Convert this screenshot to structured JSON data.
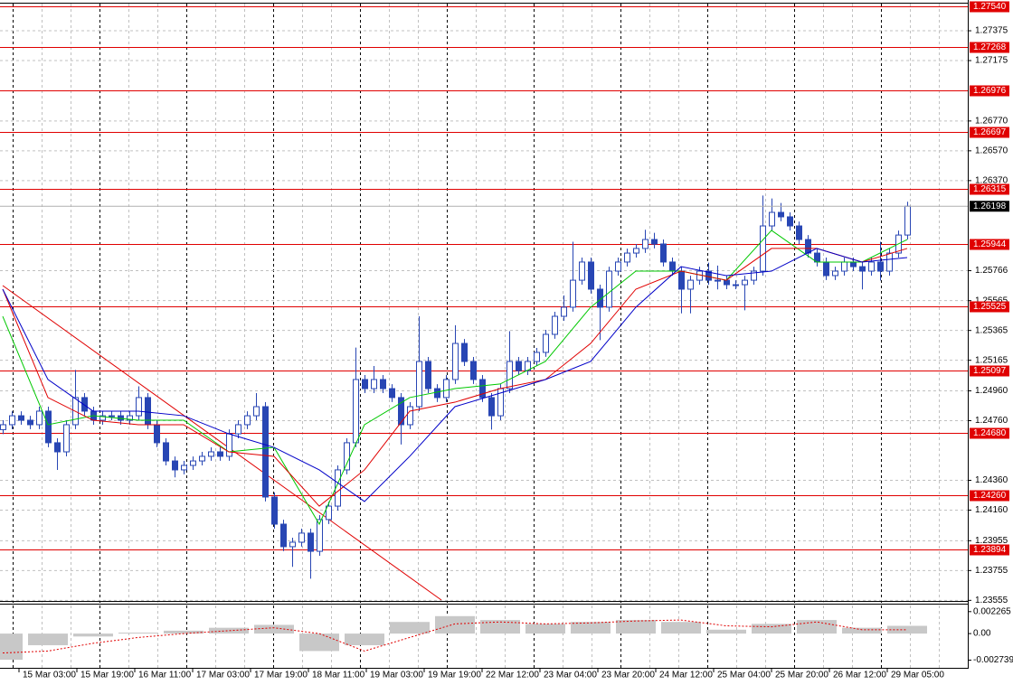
{
  "chart_data": {
    "type": "candlestick",
    "ylim": [
      1.23557,
      1.27551
    ],
    "yticks": [
      1.27375,
      1.27175,
      {
        "value": 1.2677,
        "label": "1.26770"
      },
      {
        "value": 1.2657,
        "label": "1.26570"
      },
      {
        "value": 1.2637,
        "label": "1.26370"
      },
      1.25766,
      1.25565,
      1.25365,
      1.25165,
      {
        "value": 1.2496,
        "label": "1.24960"
      },
      {
        "value": 1.2476,
        "label": "1.24760"
      },
      {
        "value": 1.2436,
        "label": "1.24360"
      },
      {
        "value": 1.2416,
        "label": "1.24160"
      },
      1.23955,
      1.23755,
      1.23555
    ],
    "grid": true,
    "categories": [
      "1:00",
      "15 Mar 03:00",
      "15 Mar 19:00",
      "16 Mar 11:00",
      "17 Mar 03:00",
      "17 Mar 19:00",
      "18 Mar 11:00",
      "19 Mar 03:00",
      "19 Mar 19:00",
      "22 Mar 12:00",
      "23 Mar 04:00",
      "23 Mar 20:00",
      "24 Mar 12:00",
      "25 Mar 04:00",
      "25 Mar 20:00",
      "26 Mar 12:00",
      "29 Mar 05:00"
    ],
    "color": "#2846b4",
    "candles": {
      "open": [
        1.247,
        1.24733,
        1.24793,
        1.24763,
        1.24733,
        1.24824,
        1.24612,
        1.24551,
        1.24733,
        1.24915,
        1.24824,
        1.24763,
        1.24793,
        1.24793,
        1.24763,
        1.24793,
        1.24915,
        1.24733,
        1.24612,
        1.2449,
        1.2443,
        1.2446,
        1.2449,
        1.24521,
        1.24551,
        1.24521,
        1.24672,
        1.24733,
        1.24793,
        1.24854,
        1.24248,
        1.24066,
        1.23915,
        1.23945,
        1.24006,
        1.23884,
        1.24097,
        1.24187,
        1.2443,
        1.24612,
        1.25036,
        1.24975,
        1.25036,
        1.24975,
        1.24915,
        1.24733,
        1.24854,
        1.25157,
        1.24975,
        1.24915,
        1.25036,
        1.25278,
        1.25157,
        1.25036,
        1.24915,
        1.24793,
        1.24975,
        1.25157,
        1.25096,
        1.25157,
        1.25218,
        1.25339,
        1.2546,
        1.25521,
        1.25702,
        1.25824,
        1.25642,
        1.25521,
        1.25763,
        1.25824,
        1.25884,
        1.25915,
        1.25975,
        1.25945,
        1.25824,
        1.25763,
        1.25642,
        1.25702,
        1.25763,
        1.25702,
        1.25702,
        1.25672,
        1.25672,
        1.25702,
        1.25763,
        1.26066,
        1.26157,
        1.26127,
        1.26066,
        1.25975,
        1.25884,
        1.25824,
        1.25733,
        1.25763,
        1.25824,
        1.25793,
        1.25763,
        1.25824,
        1.25763,
        1.25884,
        1.26005
      ],
      "high": [
        1.24763,
        1.24823,
        1.24823,
        1.24793,
        1.24854,
        1.24854,
        1.24642,
        1.24763,
        1.251,
        1.24945,
        1.24854,
        1.24823,
        1.24823,
        1.24823,
        1.24823,
        1.2499,
        1.24945,
        1.24763,
        1.24642,
        1.2452,
        1.2449,
        1.2452,
        1.24551,
        1.24581,
        1.24581,
        1.24702,
        1.24763,
        1.24823,
        1.24945,
        1.24884,
        1.24278,
        1.24096,
        1.23975,
        1.24036,
        1.24036,
        1.24127,
        1.24217,
        1.2446,
        1.24642,
        1.2525,
        1.25066,
        1.25127,
        1.25066,
        1.25005,
        1.24945,
        1.24884,
        1.2546,
        1.25187,
        1.25005,
        1.25066,
        1.254,
        1.25308,
        1.25187,
        1.25066,
        1.24945,
        1.25005,
        1.2536,
        1.25187,
        1.25187,
        1.25248,
        1.25369,
        1.2549,
        1.256,
        1.2596,
        1.25854,
        1.25854,
        1.25672,
        1.25793,
        1.25854,
        1.25914,
        1.25945,
        1.2604,
        1.2602,
        1.25975,
        1.25854,
        1.25793,
        1.25732,
        1.25793,
        1.2582,
        1.258,
        1.25732,
        1.25702,
        1.25732,
        1.25793,
        1.2627,
        1.2625,
        1.2622,
        1.26157,
        1.26096,
        1.26005,
        1.25914,
        1.25854,
        1.25793,
        1.25854,
        1.25854,
        1.25823,
        1.25854,
        1.2596,
        1.25914,
        1.26035,
        1.26228
      ],
      "low": [
        1.2467,
        1.24703,
        1.24733,
        1.24703,
        1.24703,
        1.24582,
        1.2443,
        1.24521,
        1.24703,
        1.24794,
        1.24733,
        1.24733,
        1.24763,
        1.24733,
        1.24733,
        1.24763,
        1.24703,
        1.24582,
        1.2446,
        1.2438,
        1.244,
        1.2443,
        1.2446,
        1.24491,
        1.24491,
        1.24491,
        1.24642,
        1.24703,
        1.24763,
        1.24218,
        1.24036,
        1.23885,
        1.2378,
        1.23915,
        1.237,
        1.23854,
        1.24067,
        1.24157,
        1.244,
        1.24582,
        1.24945,
        1.24945,
        1.24945,
        1.24885,
        1.246,
        1.24703,
        1.24824,
        1.24945,
        1.24885,
        1.24885,
        1.25006,
        1.25127,
        1.25006,
        1.24885,
        1.247,
        1.24763,
        1.24945,
        1.25066,
        1.25066,
        1.25127,
        1.25188,
        1.25309,
        1.2543,
        1.25491,
        1.25672,
        1.25612,
        1.253,
        1.25491,
        1.25733,
        1.25794,
        1.25854,
        1.25885,
        1.25915,
        1.25794,
        1.25733,
        1.2548,
        1.2548,
        1.25672,
        1.25672,
        1.2564,
        1.25642,
        1.25642,
        1.255,
        1.25672,
        1.25733,
        1.26036,
        1.26097,
        1.26036,
        1.25945,
        1.25854,
        1.25794,
        1.25703,
        1.25703,
        1.25733,
        1.25763,
        1.2564,
        1.25733,
        1.257,
        1.25733,
        1.25854,
        1.25975
      ],
      "close": [
        1.24733,
        1.24793,
        1.24763,
        1.24733,
        1.24824,
        1.24612,
        1.24551,
        1.24733,
        1.24915,
        1.24824,
        1.24763,
        1.24793,
        1.24793,
        1.24763,
        1.24793,
        1.24915,
        1.24733,
        1.24612,
        1.2449,
        1.2443,
        1.2446,
        1.2449,
        1.24521,
        1.24551,
        1.24521,
        1.24672,
        1.24733,
        1.24793,
        1.24854,
        1.24248,
        1.24066,
        1.23915,
        1.23945,
        1.24006,
        1.23884,
        1.24097,
        1.24187,
        1.2443,
        1.24612,
        1.25036,
        1.24975,
        1.25036,
        1.24975,
        1.24915,
        1.24733,
        1.24854,
        1.25157,
        1.24975,
        1.24915,
        1.25036,
        1.25278,
        1.25157,
        1.25036,
        1.24915,
        1.24793,
        1.24975,
        1.25157,
        1.25096,
        1.25157,
        1.25218,
        1.25339,
        1.2546,
        1.25521,
        1.25702,
        1.25824,
        1.25642,
        1.25521,
        1.25763,
        1.25824,
        1.25884,
        1.25915,
        1.25975,
        1.25945,
        1.25824,
        1.25763,
        1.25642,
        1.25702,
        1.25763,
        1.25702,
        1.25702,
        1.25672,
        1.25672,
        1.25702,
        1.25763,
        1.26066,
        1.26157,
        1.26127,
        1.26066,
        1.25975,
        1.25884,
        1.25824,
        1.25733,
        1.25763,
        1.25824,
        1.25793,
        1.25763,
        1.25824,
        1.25763,
        1.25884,
        1.26005,
        1.26198
      ]
    },
    "ma_x": [
      0,
      5,
      10,
      15,
      20,
      25,
      30,
      35,
      40,
      45,
      50,
      55,
      60,
      65,
      70,
      75,
      80,
      85,
      90,
      95,
      100
    ],
    "moving_averages": [
      {
        "color": "#00c800",
        "values": [
          1.2546,
          1.24733,
          1.24793,
          1.24763,
          1.24763,
          1.24551,
          1.24581,
          1.24066,
          1.24733,
          1.24915,
          1.24975,
          1.25006,
          1.25157,
          1.25521,
          1.25763,
          1.25763,
          1.25702,
          1.26036,
          1.25824,
          1.25824,
          1.25975
        ]
      },
      {
        "color": "#e00000",
        "values": [
          1.25642,
          1.24915,
          1.24763,
          1.24733,
          1.24733,
          1.24551,
          1.24521,
          1.24187,
          1.2443,
          1.24824,
          1.24884,
          1.24975,
          1.25036,
          1.25278,
          1.25642,
          1.25763,
          1.25702,
          1.25915,
          1.25915,
          1.25824,
          1.25915
        ]
      },
      {
        "color": "#0000c8",
        "values": [
          1.25642,
          1.25036,
          1.24824,
          1.24824,
          1.24793,
          1.24672,
          1.24581,
          1.2443,
          1.24218,
          1.24521,
          1.24854,
          1.24945,
          1.25036,
          1.25157,
          1.25521,
          1.25793,
          1.25733,
          1.25763,
          1.25915,
          1.25824,
          1.25854
        ]
      }
    ],
    "trendline": {
      "color": "#e00000",
      "x": [
        0,
        48.5
      ],
      "values": [
        1.25666,
        1.23557
      ]
    },
    "levels": {
      "color": "#e00000",
      "values": [
        1.2754,
        1.27268,
        1.26976,
        1.26697,
        1.26315,
        1.25944,
        1.25525,
        1.25097,
        1.2468,
        1.2426,
        1.23894
      ],
      "value_labels": [
        "1.27540",
        "1.27268",
        "1.26976",
        "1.26697",
        "1.26315",
        "1.25944",
        "1.25525",
        "1.25097",
        "1.24680",
        "1.24260",
        "1.23894"
      ]
    },
    "last_price": 1.26198,
    "oscillator": {
      "ylim": [
        -0.00344,
        0.0029
      ],
      "yticks": [
        0.002265,
        {
          "value": 0,
          "label": "0.00"
        },
        -0.002739
      ],
      "histogram_color": "#c8c8c8",
      "signal_color": "#e00000",
      "histogram": [
        -0.0027,
        -0.0012,
        -0.0003,
        0.0001,
        0.0003,
        0.0006,
        0.0009,
        -0.0018,
        -0.0012,
        0.0012,
        0.0018,
        0.0014,
        0.001,
        0.0012,
        0.0014,
        0.0012,
        0.0004,
        0.001,
        0.0014,
        0.0006,
        0.0008
      ],
      "signal": [
        -0.002,
        -0.0018,
        -0.001,
        -0.0004,
        0,
        0.0003,
        0.0006,
        0,
        -0.0018,
        -0.0004,
        0.001,
        0.0012,
        0.001,
        0.0011,
        0.0013,
        0.0014,
        0.0008,
        0.0007,
        0.0012,
        0.0004,
        0.0004
      ]
    }
  }
}
